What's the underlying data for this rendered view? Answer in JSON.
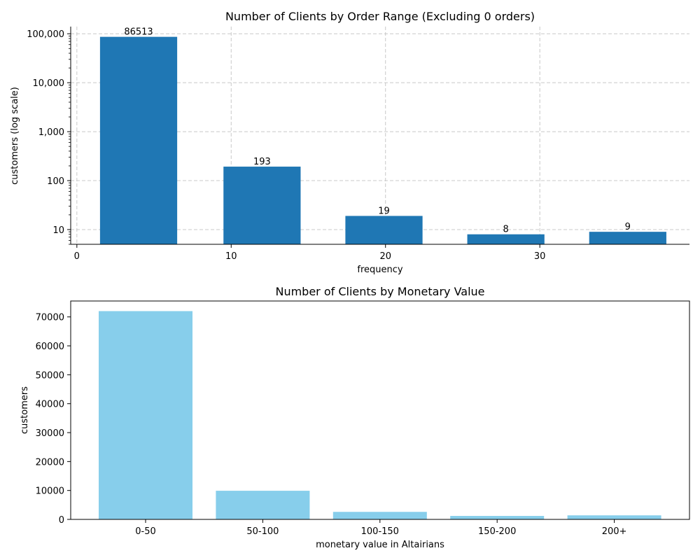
{
  "chart_data": [
    {
      "type": "bar",
      "title": "Number of Clients by Order Range (Excluding 0 orders)",
      "xlabel": "frequency",
      "ylabel": "customers (log scale)",
      "yscale": "log",
      "ylim": [
        5,
        140000
      ],
      "xlim": [
        -0.4,
        39.7
      ],
      "xticks": [
        0,
        10,
        20,
        30
      ],
      "yticks": [
        10,
        100,
        1000,
        10000,
        100000
      ],
      "ytick_labels": [
        "10",
        "100",
        "1,000",
        "10,000",
        "100,000"
      ],
      "grid": true,
      "bars": [
        {
          "x_start": 1.5,
          "x_end": 6.5,
          "value": 86513,
          "label": "86513"
        },
        {
          "x_start": 9.5,
          "x_end": 14.5,
          "value": 193,
          "label": "193"
        },
        {
          "x_start": 17.4,
          "x_end": 22.4,
          "value": 19,
          "label": "19"
        },
        {
          "x_start": 25.3,
          "x_end": 30.3,
          "value": 8,
          "label": "8"
        },
        {
          "x_start": 33.2,
          "x_end": 38.2,
          "value": 9,
          "label": "9"
        }
      ],
      "color": "#1f77b4"
    },
    {
      "type": "bar",
      "title": "Number of Clients by Monetary Value",
      "xlabel": "monetary value in Altairians",
      "ylabel": "customers",
      "categories": [
        "0-50",
        "50-100",
        "100-150",
        "150-200",
        "200+"
      ],
      "values": [
        72000,
        9900,
        2600,
        1200,
        1400
      ],
      "ylim": [
        0,
        75500
      ],
      "yticks": [
        0,
        10000,
        20000,
        30000,
        40000,
        50000,
        60000,
        70000
      ],
      "grid": false,
      "color": "#87ceeb"
    }
  ]
}
